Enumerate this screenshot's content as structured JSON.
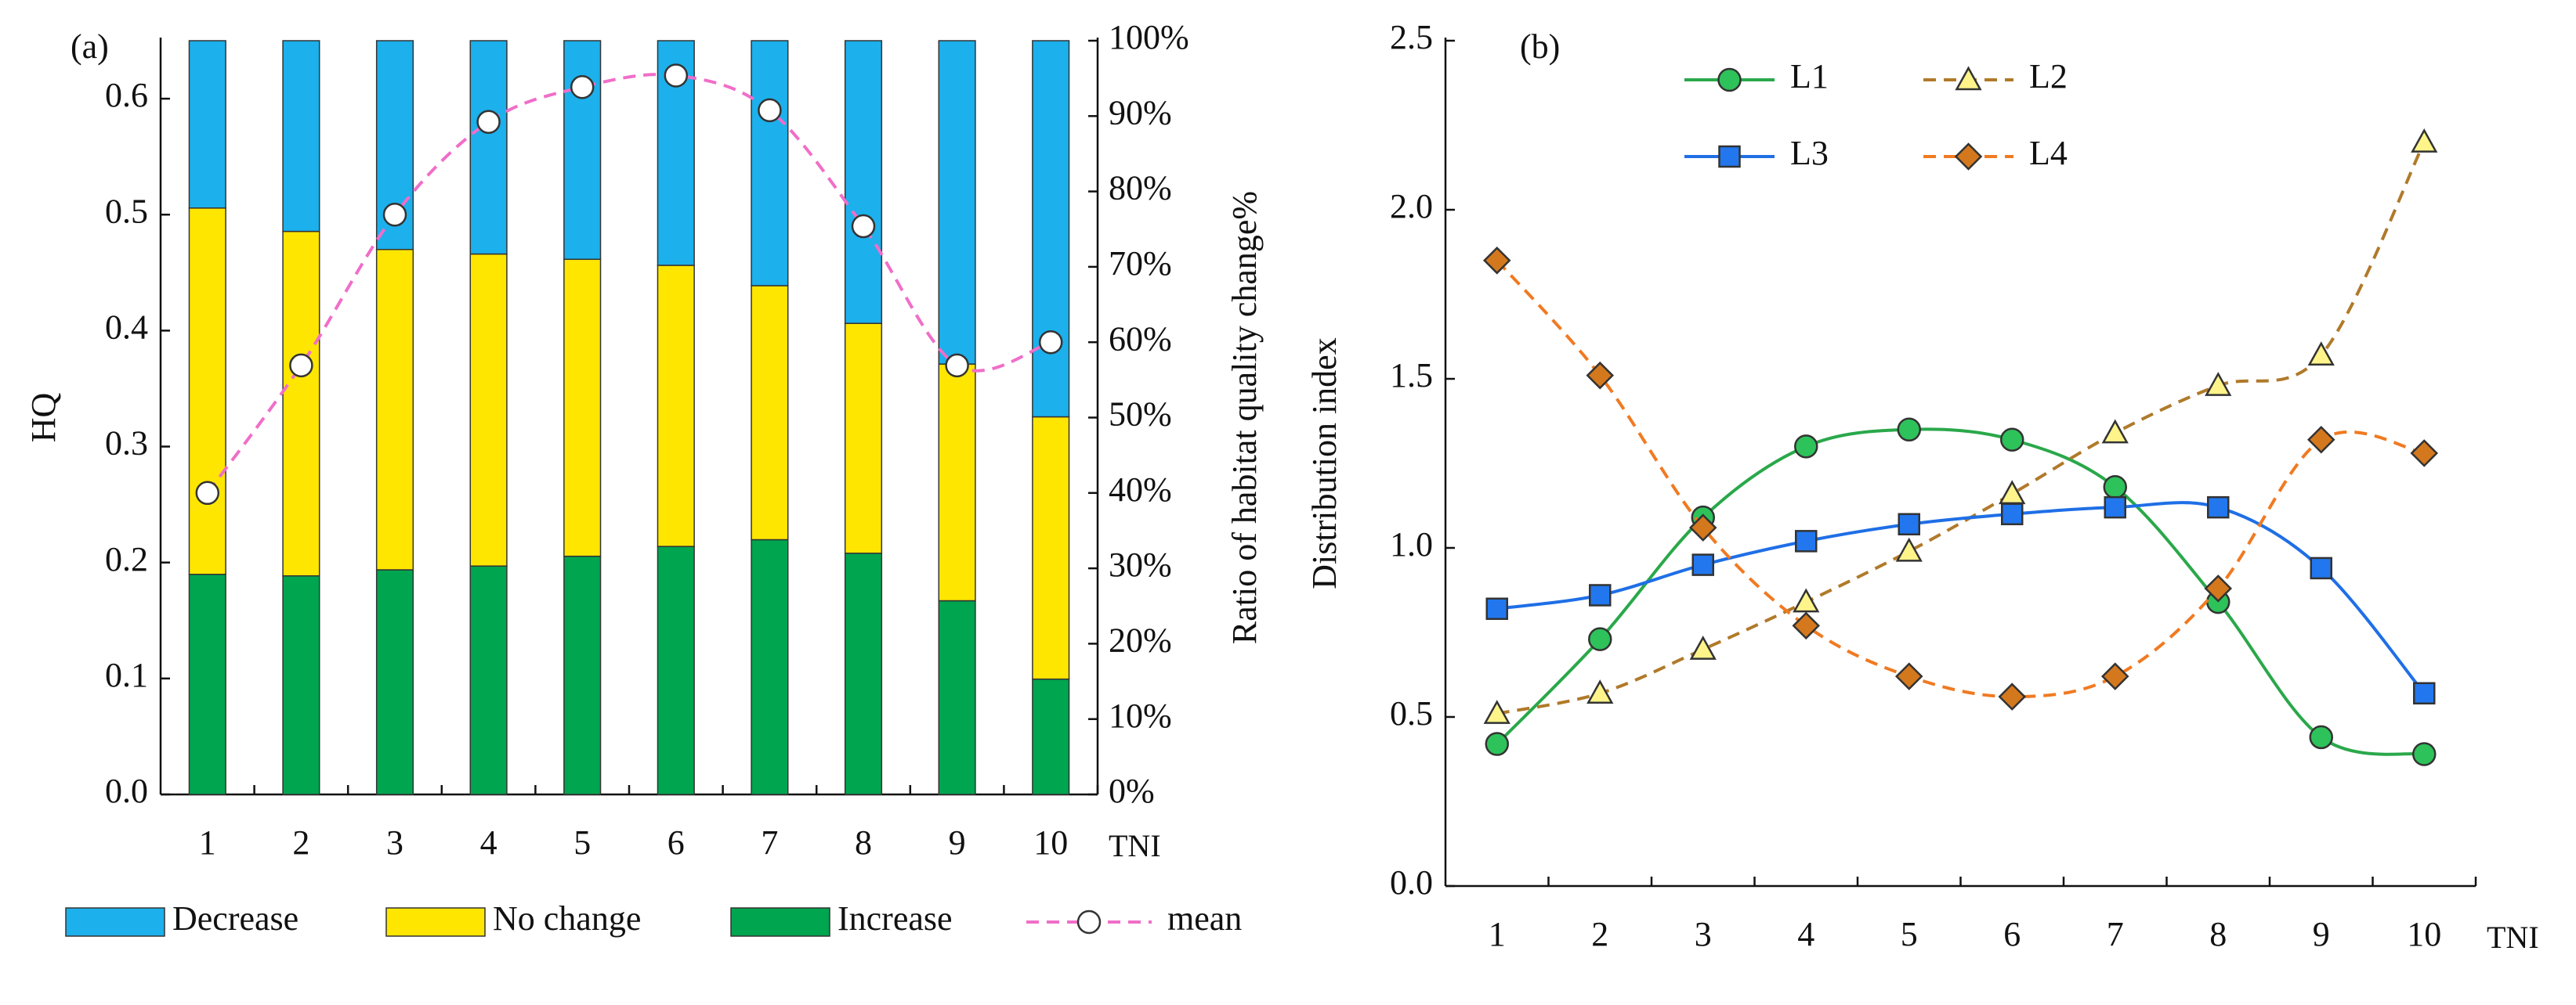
{
  "chart_data": [
    {
      "type": "bar",
      "stacked": true,
      "panel_label": "(a)",
      "categories": [
        "1",
        "2",
        "3",
        "4",
        "5",
        "6",
        "7",
        "8",
        "9",
        "10"
      ],
      "xlabel": "TNI",
      "ylabel": "HQ",
      "y2label": "Ratio of habitat quality change%",
      "ylim": [
        0,
        0.65
      ],
      "yticks": [
        {
          "value": 0,
          "label": "0.0"
        },
        0.1,
        0.2,
        0.3,
        0.4,
        0.5,
        0.6
      ],
      "y2lim": [
        0,
        100
      ],
      "y2ticks": [
        {
          "value": 0,
          "label": "0%"
        },
        {
          "value": 10,
          "label": "10%"
        },
        {
          "value": 20,
          "label": "20%"
        },
        {
          "value": 30,
          "label": "30%"
        },
        {
          "value": 40,
          "label": "40%"
        },
        {
          "value": 50,
          "label": "50%"
        },
        {
          "value": 60,
          "label": "60%"
        },
        {
          "value": 70,
          "label": "70%"
        },
        {
          "value": 80,
          "label": "80%"
        },
        {
          "value": 90,
          "label": "90%"
        },
        {
          "value": 100,
          "label": "100%"
        }
      ],
      "legend": "bottom",
      "series": [
        {
          "name": "Decrease",
          "color": "#1cb0ec",
          "axis": "y2",
          "values": [
            22.2,
            25.3,
            27.7,
            28.3,
            29.0,
            29.8,
            32.5,
            37.5,
            42.9,
            49.9
          ]
        },
        {
          "name": "No change",
          "color": "#ffe600",
          "axis": "y2",
          "values": [
            48.6,
            45.7,
            42.5,
            41.4,
            39.4,
            37.3,
            33.7,
            30.5,
            31.4,
            34.8
          ]
        },
        {
          "name": "Increase",
          "color": "#00a54f",
          "axis": "y2",
          "values": [
            29.2,
            29.0,
            29.8,
            30.3,
            31.6,
            32.9,
            33.8,
            32.0,
            25.7,
            15.3
          ]
        },
        {
          "name": "mean",
          "type": "line",
          "color": "#f06ec8",
          "dash": true,
          "marker": "circle",
          "marker_color": "#ffffff",
          "axis": "y",
          "values": [
            0.26,
            0.37,
            0.5,
            0.58,
            0.61,
            0.62,
            0.59,
            0.49,
            0.37,
            0.39
          ]
        }
      ]
    },
    {
      "type": "line",
      "panel_label": "(b)",
      "categories": [
        "1",
        "2",
        "3",
        "4",
        "5",
        "6",
        "7",
        "8",
        "9",
        "10"
      ],
      "xlabel": "TNI",
      "ylabel": "Distribution index",
      "ylim": [
        0,
        2.5
      ],
      "yticks": [
        {
          "value": 0,
          "label": "0.0"
        },
        0.5,
        {
          "value": 1,
          "label": "1.0"
        },
        1.5,
        {
          "value": 2,
          "label": "2.0"
        },
        2.5
      ],
      "legend": "upper left",
      "series": [
        {
          "name": "L1",
          "color": "#2aa84a",
          "marker": "circle",
          "marker_color": "#2ec25a",
          "dash": false,
          "values": [
            0.42,
            0.73,
            1.09,
            1.3,
            1.35,
            1.32,
            1.18,
            0.84,
            0.44,
            0.39
          ]
        },
        {
          "name": "L2",
          "color": "#b07a2a",
          "marker": "triangle",
          "marker_color": "#fff48a",
          "dash": true,
          "values": [
            0.51,
            0.57,
            0.7,
            0.84,
            0.99,
            1.16,
            1.34,
            1.48,
            1.57,
            2.2
          ]
        },
        {
          "name": "L3",
          "color": "#1f6fe6",
          "marker": "square",
          "marker_color": "#2277ee",
          "dash": false,
          "values": [
            0.82,
            0.86,
            0.95,
            1.02,
            1.07,
            1.1,
            1.12,
            1.12,
            0.94,
            0.57
          ]
        },
        {
          "name": "L4",
          "color": "#f07a22",
          "marker": "diamond",
          "marker_color": "#d4781e",
          "dash": true,
          "values": [
            1.85,
            1.51,
            1.06,
            0.77,
            0.62,
            0.56,
            0.62,
            0.88,
            1.32,
            1.28
          ]
        }
      ]
    }
  ]
}
